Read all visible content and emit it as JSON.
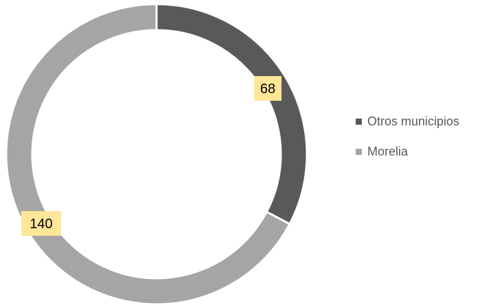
{
  "chart_data": {
    "type": "pie",
    "variant": "doughnut",
    "title": "",
    "legend_position": "right",
    "series": [
      {
        "name": "Otros municipios",
        "value": 68,
        "label": "68",
        "color": "#595959"
      },
      {
        "name": "Morelia",
        "value": 140,
        "label": "140",
        "color": "#a5a5a5"
      }
    ],
    "label_style": {
      "background": "#ffe699",
      "text_color": "#000000"
    }
  }
}
